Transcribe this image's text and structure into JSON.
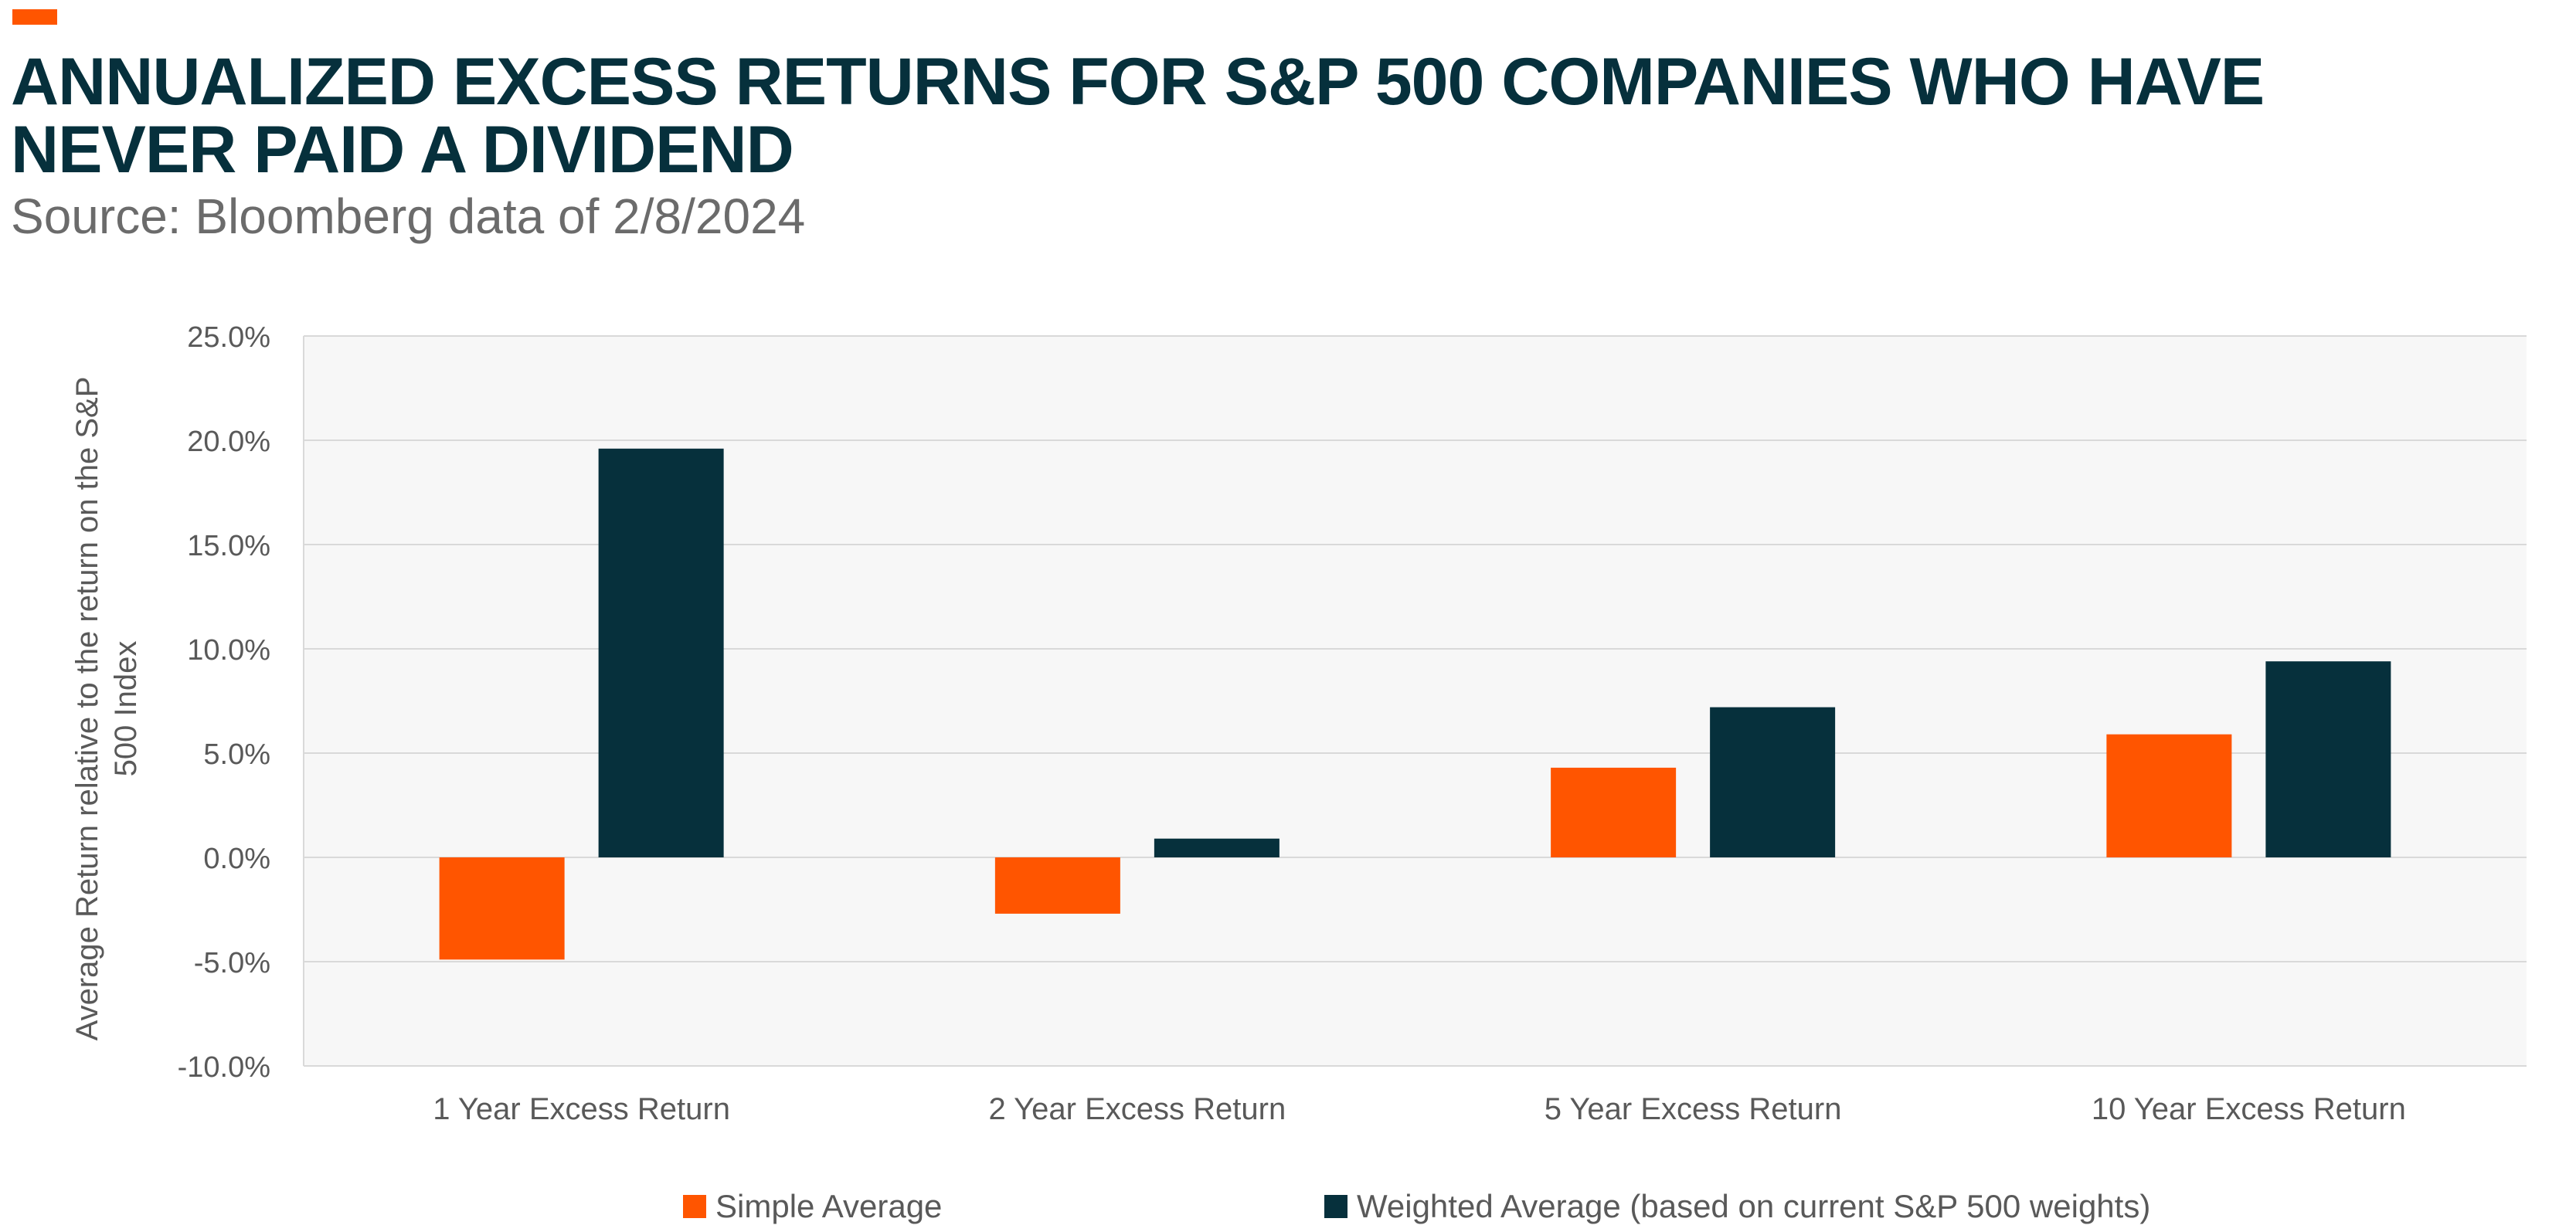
{
  "header": {
    "title": "ANNUALIZED EXCESS RETURNS FOR S&P 500 COMPANIES WHO HAVE NEVER PAID A DIVIDEND",
    "subtitle": "Source: Bloomberg data of 2/8/2024",
    "accent_color": "#ff5500"
  },
  "chart_data": {
    "type": "bar",
    "title": "ANNUALIZED EXCESS RETURNS FOR S&P 500 COMPANIES WHO HAVE NEVER PAID A DIVIDEND",
    "subtitle": "Source: Bloomberg data of 2/8/2024",
    "xlabel": "",
    "ylabel": "Average Return relative to the return on the S&P 500 Index",
    "ylabel_lines": [
      "Average Return relative to the return on the S&P",
      "500 Index"
    ],
    "categories": [
      "1 Year Excess Return",
      "2 Year Excess Return",
      "5 Year Excess Return",
      "10 Year Excess Return"
    ],
    "series": [
      {
        "name": "Simple Average",
        "color": "#ff5500",
        "values": [
          -4.9,
          -2.7,
          4.3,
          5.9
        ]
      },
      {
        "name": "Weighted Average (based on current S&P 500 weights)",
        "color": "#06303c",
        "values": [
          19.6,
          0.9,
          7.2,
          9.4
        ]
      }
    ],
    "ylim": [
      -10,
      25
    ],
    "yticks": [
      -10,
      -5,
      0,
      5,
      10,
      15,
      20,
      25
    ],
    "ytick_labels": [
      "-10.0%",
      "-5.0%",
      "0.0%",
      "5.0%",
      "10.0%",
      "15.0%",
      "20.0%",
      "25.0%"
    ],
    "grid": true,
    "legend_position": "bottom",
    "plot_background": "#f7f7f7",
    "grid_color": "#d9d9d9"
  }
}
